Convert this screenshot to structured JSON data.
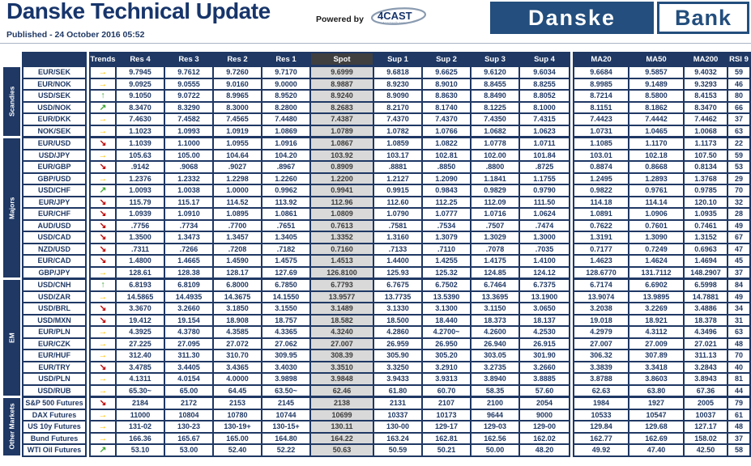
{
  "header": {
    "title": "Danske Technical Update",
    "published": "Published - 24 October 2016 05:52",
    "powered_by": "Powered by",
    "powered_by_logo": "4CAST",
    "powered_by_logo_sub": "4castweb.com",
    "logo_left": "Danske",
    "logo_right": "Bank"
  },
  "colors": {
    "table_navy": "#1F3864",
    "logo_navy": "#234E7D",
    "spot_cell_bg": "#D9D9D9",
    "spot_header_bg": "#404040",
    "trend_up_green": "#3FA535",
    "trend_neutral_yellow": "#FFC000",
    "trend_down_red": "#C00000"
  },
  "trend_icons": {
    "up": "↑",
    "upright": "↗",
    "right": "→",
    "downright": "↘"
  },
  "table": {
    "columns": [
      "Trends",
      "Res 4",
      "Res 3",
      "Res 2",
      "Res 1",
      "Spot",
      "Sup 1",
      "Sup 2",
      "Sup 3",
      "Sup 4",
      "MA20",
      "MA50",
      "MA200",
      "RSI 9"
    ],
    "groups": [
      {
        "label": "Scandies",
        "rows": [
          {
            "instrument": "EUR/SEK",
            "trend": "right",
            "values": [
              "9.7945",
              "9.7612",
              "9.7260",
              "9.7170",
              "9.6999",
              "9.6818",
              "9.6625",
              "9.6120",
              "9.6034",
              "9.6684",
              "9.5857",
              "9.4032",
              "59"
            ]
          },
          {
            "instrument": "EUR/NOK",
            "trend": "right",
            "values": [
              "9.0925",
              "9.0555",
              "9.0160",
              "9.0000",
              "8.9887",
              "8.9230",
              "8.9010",
              "8.8455",
              "8.8255",
              "8.9985",
              "9.1489",
              "9.3293",
              "46"
            ]
          },
          {
            "instrument": "USD/SEK",
            "trend": "up",
            "values": [
              "9.1050",
              "9.0722",
              "8.9965",
              "8.9520",
              "8.9240",
              "8.9090",
              "8.8630",
              "8.8490",
              "8.8052",
              "8.7214",
              "8.5800",
              "8.4153",
              "80"
            ]
          },
          {
            "instrument": "USD/NOK",
            "trend": "upright",
            "values": [
              "8.3470",
              "8.3290",
              "8.3000",
              "8.2800",
              "8.2683",
              "8.2170",
              "8.1740",
              "8.1225",
              "8.1000",
              "8.1151",
              "8.1862",
              "8.3470",
              "66"
            ]
          },
          {
            "instrument": "EUR/DKK",
            "trend": "right",
            "values": [
              "7.4630",
              "7.4582",
              "7.4565",
              "7.4480",
              "7.4387",
              "7.4370",
              "7.4370",
              "7.4350",
              "7.4315",
              "7.4423",
              "7.4442",
              "7.4462",
              "37"
            ]
          },
          {
            "instrument": "NOK/SEK",
            "trend": "right",
            "values": [
              "1.1023",
              "1.0993",
              "1.0919",
              "1.0869",
              "1.0789",
              "1.0782",
              "1.0766",
              "1.0682",
              "1.0623",
              "1.0731",
              "1.0465",
              "1.0068",
              "63"
            ]
          }
        ]
      },
      {
        "label": "Majors",
        "rows": [
          {
            "instrument": "EUR/USD",
            "trend": "downright",
            "values": [
              "1.1039",
              "1.1000",
              "1.0955",
              "1.0916",
              "1.0867",
              "1.0859",
              "1.0822",
              "1.0778",
              "1.0711",
              "1.1085",
              "1.1170",
              "1.1173",
              "22"
            ]
          },
          {
            "instrument": "USD/JPY",
            "trend": "right",
            "values": [
              "105.63",
              "105.00",
              "104.64",
              "104.20",
              "103.92",
              "103.17",
              "102.81",
              "102.00",
              "101.84",
              "103.01",
              "102.18",
              "107.50",
              "59"
            ]
          },
          {
            "instrument": "EUR/GBP",
            "trend": "downright",
            "values": [
              ".9142",
              ".9068",
              ".9027",
              ".8967",
              "0.8909",
              ".8881",
              ".8850",
              ".8800",
              ".8725",
              "0.8874",
              "0.8668",
              "0.8134",
              "53"
            ]
          },
          {
            "instrument": "GBP/USD",
            "trend": "right",
            "values": [
              "1.2376",
              "1.2332",
              "1.2298",
              "1.2260",
              "1.2200",
              "1.2127",
              "1.2090",
              "1.1841",
              "1.1755",
              "1.2495",
              "1.2893",
              "1.3768",
              "29"
            ]
          },
          {
            "instrument": "USD/CHF",
            "trend": "upright",
            "values": [
              "1.0093",
              "1.0038",
              "1.0000",
              "0.9962",
              "0.9941",
              "0.9915",
              "0.9843",
              "0.9829",
              "0.9790",
              "0.9822",
              "0.9761",
              "0.9785",
              "70"
            ]
          },
          {
            "instrument": "EUR/JPY",
            "trend": "downright",
            "values": [
              "115.79",
              "115.17",
              "114.52",
              "113.92",
              "112.96",
              "112.60",
              "112.25",
              "112.09",
              "111.50",
              "114.18",
              "114.14",
              "120.10",
              "32"
            ]
          },
          {
            "instrument": "EUR/CHF",
            "trend": "downright",
            "values": [
              "1.0939",
              "1.0910",
              "1.0895",
              "1.0861",
              "1.0809",
              "1.0790",
              "1.0777",
              "1.0716",
              "1.0624",
              "1.0891",
              "1.0906",
              "1.0935",
              "28"
            ]
          },
          {
            "instrument": "AUD/USD",
            "trend": "downright",
            "values": [
              ".7756",
              ".7734",
              ".7700",
              ".7651",
              "0.7613",
              ".7581",
              ".7534",
              ".7507",
              ".7474",
              "0.7622",
              "0.7601",
              "0.7461",
              "49"
            ]
          },
          {
            "instrument": "USD/CAD",
            "trend": "downright",
            "values": [
              "1.3500",
              "1.3473",
              "1.3457",
              "1.3405",
              "1.3352",
              "1.3160",
              "1.3079",
              "1.3029",
              "1.3000",
              "1.3191",
              "1.3090",
              "1.3152",
              "67"
            ]
          },
          {
            "instrument": "NZD/USD",
            "trend": "downright",
            "values": [
              ".7311",
              ".7266",
              ".7208",
              ".7182",
              "0.7160",
              ".7133",
              ".7110",
              ".7078",
              ".7035",
              "0.7177",
              "0.7249",
              "0.6963",
              "47"
            ]
          },
          {
            "instrument": "EUR/CAD",
            "trend": "downright",
            "values": [
              "1.4800",
              "1.4665",
              "1.4590",
              "1.4575",
              "1.4513",
              "1.4400",
              "1.4255",
              "1.4175",
              "1.4100",
              "1.4623",
              "1.4624",
              "1.4694",
              "45"
            ]
          },
          {
            "instrument": "GBP/JPY",
            "trend": "right",
            "values": [
              "128.61",
              "128.38",
              "128.17",
              "127.69",
              "126.8100",
              "125.93",
              "125.32",
              "124.85",
              "124.12",
              "128.6770",
              "131.7112",
              "148.2907",
              "37"
            ]
          }
        ]
      },
      {
        "label": "EM",
        "rows": [
          {
            "instrument": "USD/CNH",
            "trend": "up",
            "values": [
              "6.8193",
              "6.8109",
              "6.8000",
              "6.7850",
              "6.7793",
              "6.7675",
              "6.7502",
              "6.7464",
              "6.7375",
              "6.7174",
              "6.6902",
              "6.5998",
              "84"
            ]
          },
          {
            "instrument": "USD/ZAR",
            "trend": "right",
            "values": [
              "14.5865",
              "14.4935",
              "14.3675",
              "14.1550",
              "13.9577",
              "13.7735",
              "13.5390",
              "13.3695",
              "13.1900",
              "13.9074",
              "13.9895",
              "14.7881",
              "49"
            ]
          },
          {
            "instrument": "USD/BRL",
            "trend": "downright",
            "values": [
              "3.3670",
              "3.2660",
              "3.1850",
              "3.1550",
              "3.1489",
              "3.1330",
              "3.1300",
              "3.1150",
              "3.0650",
              "3.2038",
              "3.2269",
              "3.4886",
              "34"
            ]
          },
          {
            "instrument": "USD/MXN",
            "trend": "downright",
            "values": [
              "19.412",
              "19.154",
              "18.908",
              "18.757",
              "18.582",
              "18.500",
              "18.440",
              "18.373",
              "18.137",
              "19.018",
              "18.921",
              "18.378",
              "31"
            ]
          },
          {
            "instrument": "EUR/PLN",
            "trend": "right",
            "values": [
              "4.3925",
              "4.3780",
              "4.3585",
              "4.3365",
              "4.3240",
              "4.2860",
              "4.2700~",
              "4.2600",
              "4.2530",
              "4.2979",
              "4.3112",
              "4.3496",
              "63"
            ]
          },
          {
            "instrument": "EUR/CZK",
            "trend": "right",
            "values": [
              "27.225",
              "27.095",
              "27.072",
              "27.062",
              "27.007",
              "26.959",
              "26.950",
              "26.940",
              "26.915",
              "27.007",
              "27.009",
              "27.021",
              "48"
            ]
          },
          {
            "instrument": "EUR/HUF",
            "trend": "right",
            "values": [
              "312.40",
              "311.30",
              "310.70",
              "309.95",
              "308.39",
              "305.90",
              "305.20",
              "303.05",
              "301.90",
              "306.32",
              "307.89",
              "311.13",
              "70"
            ]
          },
          {
            "instrument": "EUR/TRY",
            "trend": "downright",
            "values": [
              "3.4785",
              "3.4405",
              "3.4365",
              "3.4030",
              "3.3510",
              "3.3250",
              "3.2910",
              "3.2735",
              "3.2660",
              "3.3839",
              "3.3418",
              "3.2843",
              "40"
            ]
          },
          {
            "instrument": "USD/PLN",
            "trend": "right",
            "values": [
              "4.1311",
              "4.0154",
              "4.0000",
              "3.9898",
              "3.9848",
              "3.9433",
              "3.9313",
              "3.8940",
              "3.8885",
              "3.8788",
              "3.8603",
              "3.8943",
              "81"
            ]
          },
          {
            "instrument": "USD/RUB",
            "trend": "right",
            "values": [
              "65.30~",
              "65.00",
              "64.45",
              "63.50~",
              "62.46",
              "61.80",
              "60.70",
              "58.35",
              "57.60",
              "62.63",
              "63.80",
              "67.36",
              "44"
            ]
          }
        ]
      },
      {
        "label": "Other Markets",
        "rows": [
          {
            "instrument": "S&P 500 Futures",
            "trend": "downright",
            "values": [
              "2184",
              "2172",
              "2153",
              "2145",
              "2138",
              "2131",
              "2107",
              "2100",
              "2054",
              "1984",
              "1927",
              "2005",
              "79"
            ]
          },
          {
            "instrument": "DAX Futures",
            "trend": "right",
            "values": [
              "11000",
              "10804",
              "10780",
              "10744",
              "10699",
              "10337",
              "10173",
              "9644",
              "9000",
              "10533",
              "10547",
              "10037",
              "61"
            ]
          },
          {
            "instrument": "US 10y Futures",
            "trend": "right",
            "values": [
              "131-02",
              "130-23",
              "130-19+",
              "130-15+",
              "130.11",
              "130-00",
              "129-17",
              "129-03",
              "129-00",
              "129.84",
              "129.68",
              "127.17",
              "48"
            ]
          },
          {
            "instrument": "Bund Futures",
            "trend": "right",
            "values": [
              "166.36",
              "165.67",
              "165.00",
              "164.80",
              "164.22",
              "163.24",
              "162.81",
              "162.56",
              "162.02",
              "162.77",
              "162.69",
              "158.02",
              "37"
            ]
          },
          {
            "instrument": "WTI Oil Futures",
            "trend": "upright",
            "values": [
              "53.10",
              "53.00",
              "52.40",
              "52.22",
              "50.63",
              "50.59",
              "50.21",
              "50.00",
              "48.20",
              "49.92",
              "47.40",
              "42.50",
              "58"
            ]
          }
        ]
      }
    ]
  }
}
